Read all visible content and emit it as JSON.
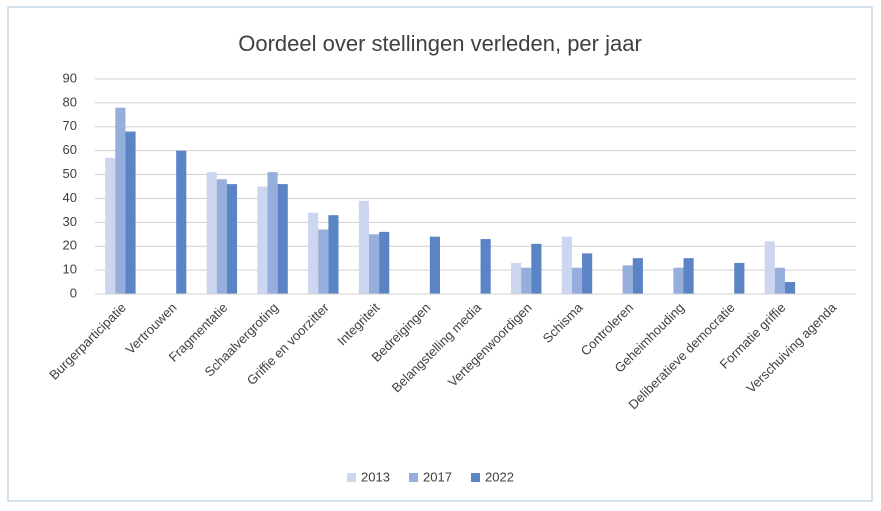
{
  "chart_data": {
    "type": "bar",
    "title": "Oordeel over stellingen verleden, per jaar",
    "categories": [
      "Burgerparticipatie",
      "Vertrouwen",
      "Fragmentatie",
      "Schaalvergroting",
      "Griffie en voorzitter",
      "Integriteit",
      "Bedreigingen",
      "Belangstelling media",
      "Vertegenwoordigen",
      "Schisma",
      "Controleren",
      "Geheimhouding",
      "Deliberatieve democratie",
      "Formatie griffie",
      "Verschuiving agenda"
    ],
    "series": [
      {
        "name": "2013",
        "color": "#cdd6ef",
        "values": [
          57,
          null,
          51,
          45,
          34,
          39,
          null,
          null,
          13,
          24,
          null,
          null,
          null,
          22,
          null
        ]
      },
      {
        "name": "2017",
        "color": "#95aedb",
        "values": [
          78,
          null,
          48,
          51,
          27,
          25,
          null,
          null,
          11,
          11,
          12,
          11,
          null,
          11,
          null
        ]
      },
      {
        "name": "2022",
        "color": "#5b84c4",
        "values": [
          68,
          60,
          46,
          46,
          33,
          26,
          24,
          23,
          21,
          17,
          15,
          15,
          13,
          5,
          null
        ]
      }
    ],
    "ylim": [
      0,
      90
    ],
    "yticks": [
      0,
      10,
      20,
      30,
      40,
      50,
      60,
      70,
      80,
      90
    ],
    "grid": true,
    "legend": "bottom"
  }
}
